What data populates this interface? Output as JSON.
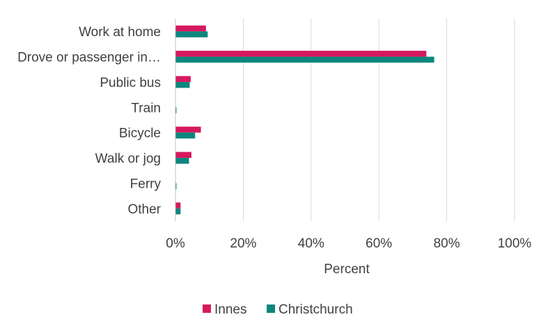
{
  "chart_data": {
    "type": "bar",
    "orientation": "horizontal",
    "title": "",
    "xlabel": "Percent",
    "ylabel": "",
    "xlim": [
      0,
      100
    ],
    "x_ticks": [
      0,
      20,
      40,
      60,
      80,
      100
    ],
    "x_tick_labels": [
      "0%",
      "20%",
      "40%",
      "60%",
      "80%",
      "100%"
    ],
    "categories": [
      "Work at home",
      "Drove or passenger in…",
      "Public bus",
      "Train",
      "Bicycle",
      "Walk or jog",
      "Ferry",
      "Other"
    ],
    "series": [
      {
        "name": "Innes",
        "color": "#d6195e",
        "values": [
          9,
          74,
          4.5,
          0,
          7.5,
          4.7,
          0,
          1.5
        ]
      },
      {
        "name": "Christchurch",
        "color": "#0e8680",
        "values": [
          9.5,
          76.3,
          4.2,
          0.3,
          5.8,
          4.0,
          0.3,
          1.5
        ]
      }
    ],
    "grid": true,
    "legend_position": "bottom"
  }
}
